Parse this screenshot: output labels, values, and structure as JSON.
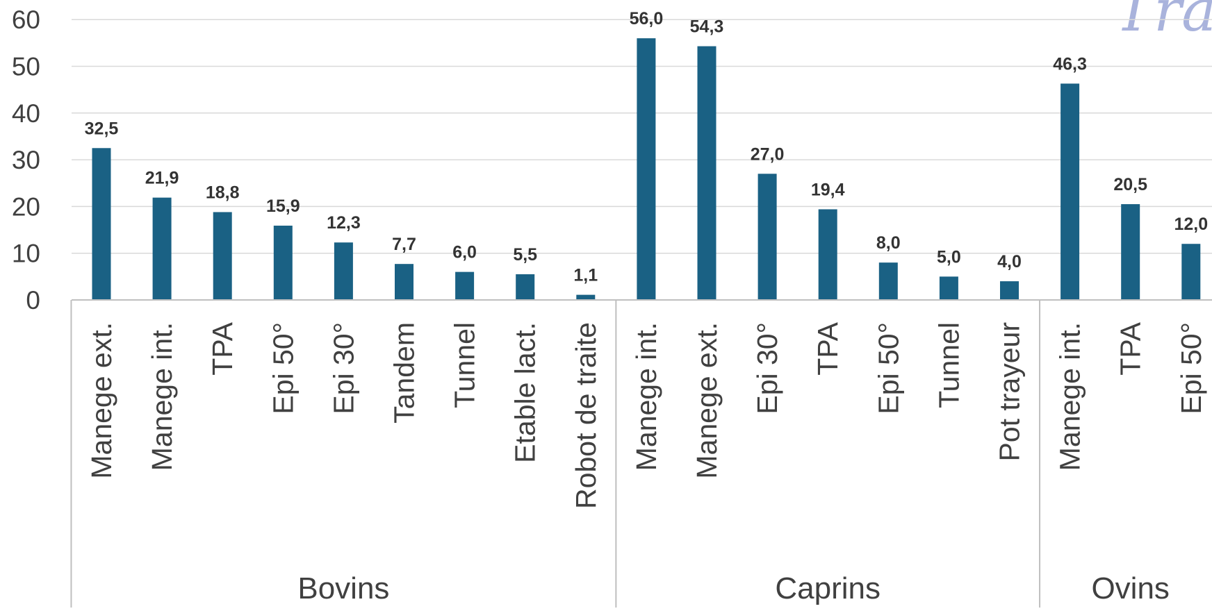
{
  "chart_data": {
    "type": "bar",
    "title": "",
    "xlabel": "",
    "ylabel": "",
    "ylim": [
      0,
      60
    ],
    "yticks": [
      0,
      10,
      20,
      30,
      40,
      50,
      60
    ],
    "grid": true,
    "legend": "none",
    "bar_color": "#1a6184",
    "grid_color": "#d9d9d9",
    "axis_color": "#bfbfbf",
    "watermark": "Trait",
    "groups": [
      {
        "name": "Bovins",
        "categories": [
          "Manege ext.",
          "Manege int.",
          "TPA",
          "Epi 50°",
          "Epi 30°",
          "Tandem",
          "Tunnel",
          "Etable lact.",
          "Robot de traite"
        ],
        "values": [
          32.5,
          21.9,
          18.8,
          15.9,
          12.3,
          7.7,
          6.0,
          5.5,
          1.1
        ],
        "labels": [
          "32,5",
          "21,9",
          "18,8",
          "15,9",
          "12,3",
          "7,7",
          "6,0",
          "5,5",
          "1,1"
        ]
      },
      {
        "name": "Caprins",
        "categories": [
          "Manege int.",
          "Manege ext.",
          "Epi 30°",
          "TPA",
          "Epi 50°",
          "Tunnel",
          "Pot trayeur"
        ],
        "values": [
          56.0,
          54.3,
          27.0,
          19.4,
          8.0,
          5.0,
          4.0
        ],
        "labels": [
          "56,0",
          "54,3",
          "27,0",
          "19,4",
          "8,0",
          "5,0",
          "4,0"
        ]
      },
      {
        "name": "Ovins",
        "categories": [
          "Manege int.",
          "TPA",
          "Epi 50°"
        ],
        "values": [
          46.3,
          20.5,
          12.0
        ],
        "labels": [
          "46,3",
          "20,5",
          "12,0"
        ]
      }
    ]
  }
}
